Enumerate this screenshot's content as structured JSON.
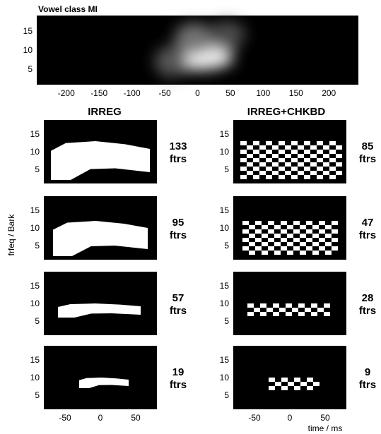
{
  "chart_data": [
    {
      "type": "heatmap",
      "title": "Vowel class MI",
      "x_ticks": [
        -200,
        -150,
        -100,
        -50,
        0,
        50,
        100,
        150,
        200
      ],
      "y_ticks": [
        15,
        10,
        5
      ],
      "xlim": [
        -245,
        245
      ],
      "ylim": [
        1,
        19
      ],
      "colormap": "gray",
      "blobs": [
        {
          "x_center": 0,
          "y_center": 8,
          "x_width": 55,
          "y_height": 3.2,
          "intensity": 0.95
        },
        {
          "x_center": -5,
          "y_center": 13,
          "x_width": 30,
          "y_height": 4,
          "intensity": 0.45
        },
        {
          "x_center": 45,
          "y_center": 14,
          "x_width": 28,
          "y_height": 3.5,
          "intensity": 0.3
        },
        {
          "x_center": -40,
          "y_center": 7,
          "x_width": 25,
          "y_height": 4,
          "intensity": 0.35
        }
      ]
    },
    {
      "type": "table",
      "column_titles": [
        "IRREG",
        "IRREG+CHKBD"
      ],
      "x_ticks": [
        -50,
        0,
        50
      ],
      "y_ticks": [
        15,
        10,
        5
      ],
      "xlim": [
        -80,
        80
      ],
      "ylim": [
        1,
        19
      ],
      "ylabel": "frfeq / Bark",
      "xlabel": "time / ms",
      "unit_label": "ftrs",
      "rows": [
        {
          "irreg_ftrs": "133",
          "chkbd_ftrs": "85",
          "x_range": [
            -70,
            70
          ],
          "y_range": [
            2,
            13
          ]
        },
        {
          "irreg_ftrs": "95",
          "chkbd_ftrs": "47",
          "x_range": [
            -67,
            67
          ],
          "y_range": [
            2,
            12
          ]
        },
        {
          "irreg_ftrs": "57",
          "chkbd_ftrs": "28",
          "x_range": [
            -60,
            57
          ],
          "y_range": [
            6,
            10
          ]
        },
        {
          "irreg_ftrs": "19",
          "chkbd_ftrs": "9",
          "x_range": [
            -30,
            40
          ],
          "y_range": [
            7,
            10
          ]
        }
      ]
    }
  ]
}
